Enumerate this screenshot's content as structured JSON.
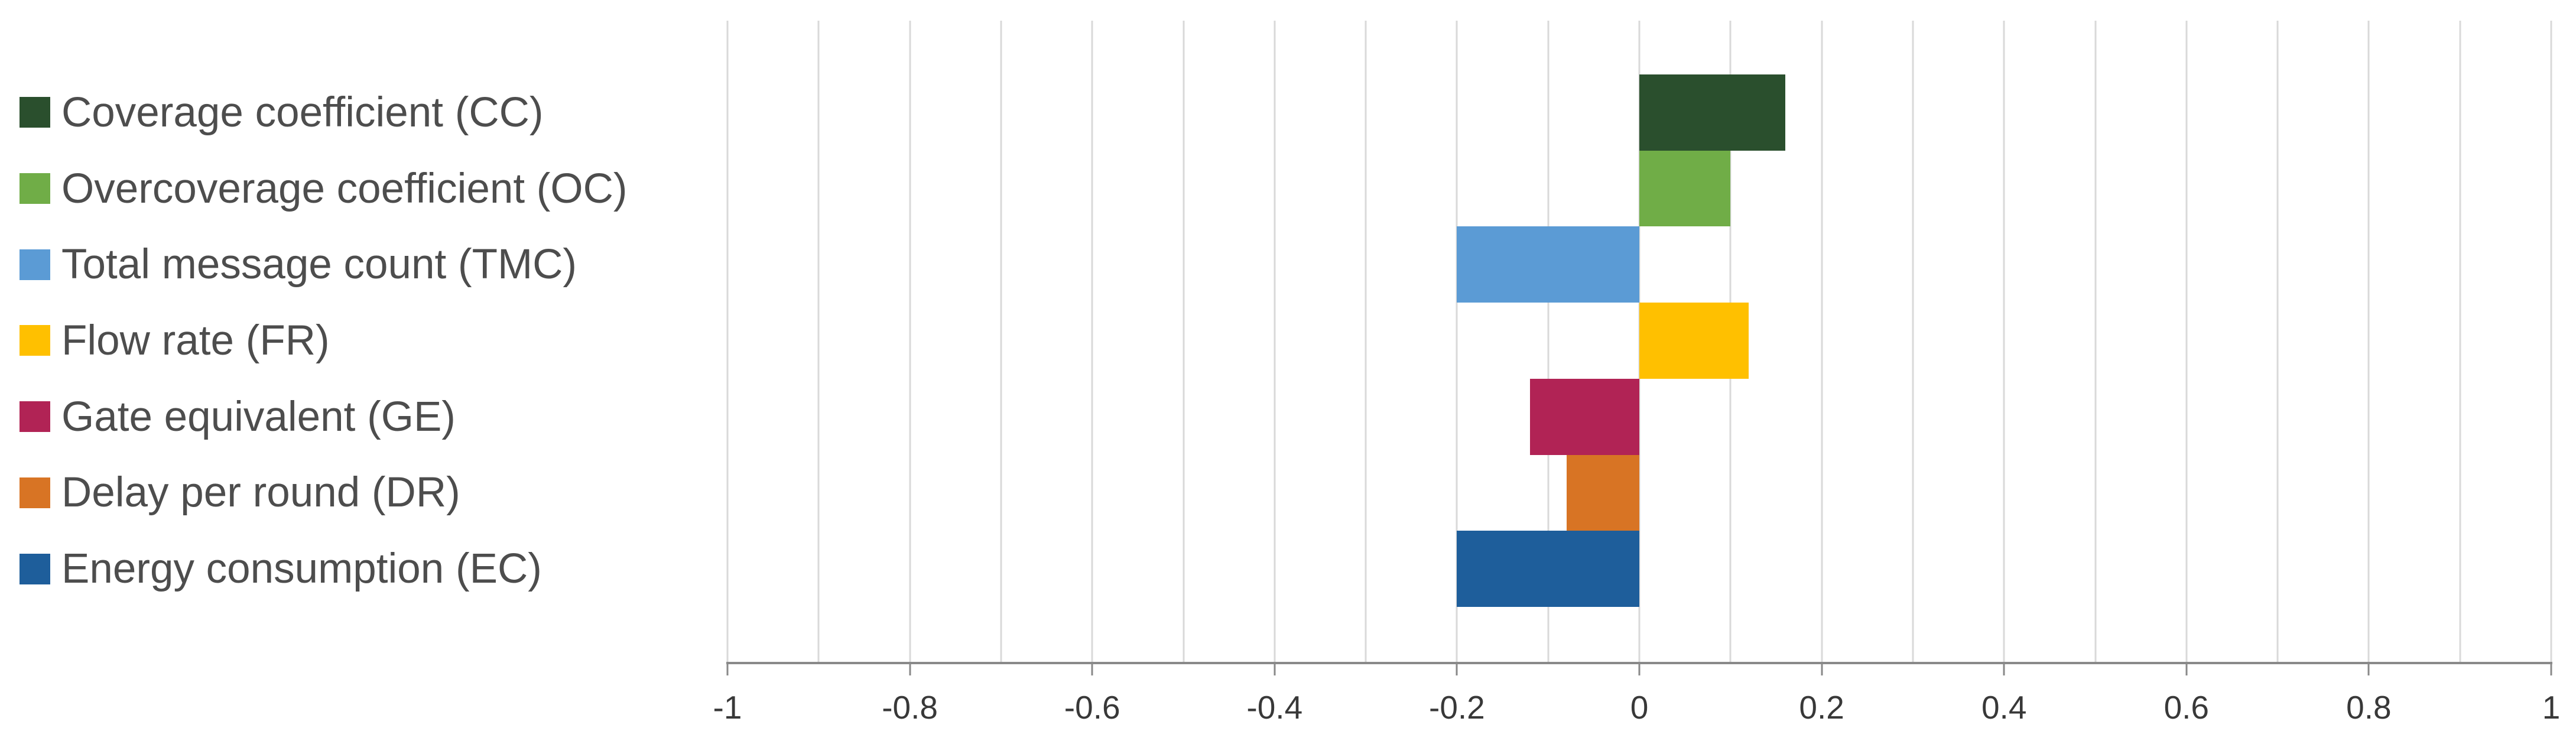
{
  "chart_data": {
    "type": "bar",
    "orientation": "horizontal",
    "title": "",
    "xlabel": "",
    "ylabel": "",
    "xlim": [
      -1,
      1
    ],
    "gridline_step": 0.1,
    "grid": true,
    "legend_position": "left",
    "series": [
      {
        "label": "Coverage coefficient (CC)",
        "value": 0.16,
        "color": "#2A4F2D"
      },
      {
        "label": "Overcoverage coefficient (OC)",
        "value": 0.1,
        "color": "#70AD47"
      },
      {
        "label": "Total message count (TMC)",
        "value": -0.2,
        "color": "#5B9BD5"
      },
      {
        "label": "Flow rate (FR)",
        "value": 0.12,
        "color": "#FFC000"
      },
      {
        "label": "Gate equivalent (GE)",
        "value": -0.12,
        "color": "#B12355"
      },
      {
        "label": "Delay per round (DR)",
        "value": -0.08,
        "color": "#D87424"
      },
      {
        "label": "Energy consumption (EC)",
        "value": -0.2,
        "color": "#1E5E9B"
      }
    ],
    "x_ticks": [
      -1,
      -0.8,
      -0.6,
      -0.4,
      -0.2,
      0,
      0.2,
      0.4,
      0.6,
      0.8,
      1
    ],
    "x_tick_labels": [
      "-1",
      "-0.8",
      "-0.6",
      "-0.4",
      "-0.2",
      "0",
      "0.2",
      "0.4",
      "0.6",
      "0.8",
      "1"
    ],
    "colors": {
      "background": "#FFFFFF",
      "gridline": "#D9D9D9",
      "axis_line": "#898989",
      "tick_mark": "#898989",
      "tick_label_text": "#383838",
      "legend_text": "#4D4D4D"
    }
  }
}
